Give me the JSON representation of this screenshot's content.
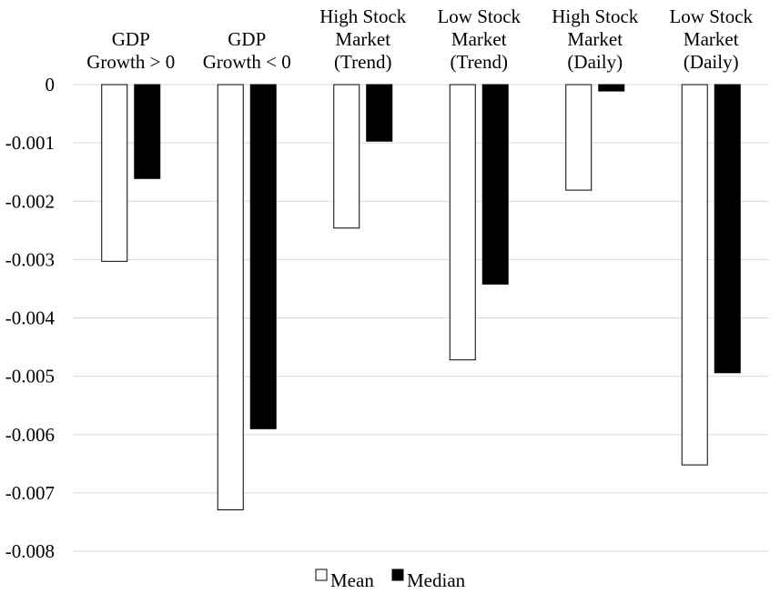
{
  "chart_data": {
    "type": "bar",
    "title": "",
    "xlabel": "",
    "ylabel": "",
    "categories": [
      [
        "GDP",
        "Growth > 0"
      ],
      [
        "GDP",
        "Growth < 0"
      ],
      [
        "High Stock",
        "Market",
        "(Trend)"
      ],
      [
        "Low Stock",
        "Market",
        "(Trend)"
      ],
      [
        "High Stock",
        "Market",
        "(Daily)"
      ],
      [
        "Low Stock",
        "Market",
        "(Daily)"
      ]
    ],
    "series": [
      {
        "name": "Mean",
        "color": "#ffffff",
        "values": [
          -0.00303,
          -0.00729,
          -0.00246,
          -0.00472,
          -0.00181,
          -0.00652
        ]
      },
      {
        "name": "Median",
        "color": "#000000",
        "values": [
          -0.00161,
          -0.0059,
          -0.00097,
          -0.00342,
          -0.00011,
          -0.00494
        ]
      }
    ],
    "ylim": [
      -0.008,
      0
    ],
    "yticks": [
      "0",
      "-0.001",
      "-0.002",
      "-0.003",
      "-0.004",
      "-0.005",
      "-0.006",
      "-0.007",
      "-0.008"
    ],
    "category_labels_position": "top",
    "legend_position": "bottom-center",
    "grid": true
  }
}
